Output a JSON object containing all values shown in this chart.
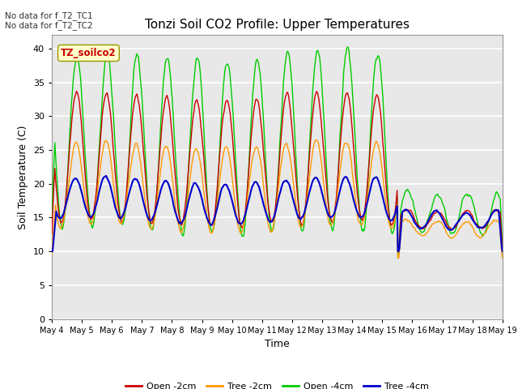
{
  "title": "Tonzi Soil CO2 Profile: Upper Temperatures",
  "xlabel": "Time",
  "ylabel": "Soil Temperature (C)",
  "ylim": [
    0,
    42
  ],
  "yticks": [
    0,
    5,
    10,
    15,
    20,
    25,
    30,
    35,
    40
  ],
  "plot_background": "#e8e8e8",
  "fig_background": "#ffffff",
  "grid_color": "#ffffff",
  "colors": {
    "open_2cm": "#cc0000",
    "tree_2cm": "#ff9900",
    "open_4cm": "#00cc00",
    "tree_4cm": "#0000cc"
  },
  "legend_labels": [
    "Open -2cm",
    "Tree -2cm",
    "Open -4cm",
    "Tree -4cm"
  ],
  "no_data_text": [
    "No data for f_T2_TC1",
    "No data for f_T2_TC2"
  ],
  "label_box_text": "TZ_soilco2",
  "x_tick_labels": [
    "May 4",
    "May 5",
    "May 6",
    "May 7",
    "May 8",
    "May 9",
    "May 10",
    "May 11",
    "May 12",
    "May 13",
    "May 14",
    "May 15",
    "May 16",
    "May 17",
    "May 18",
    "May 19"
  ],
  "n_points": 600,
  "days": 15,
  "figsize": [
    6.4,
    4.8
  ],
  "dpi": 100
}
